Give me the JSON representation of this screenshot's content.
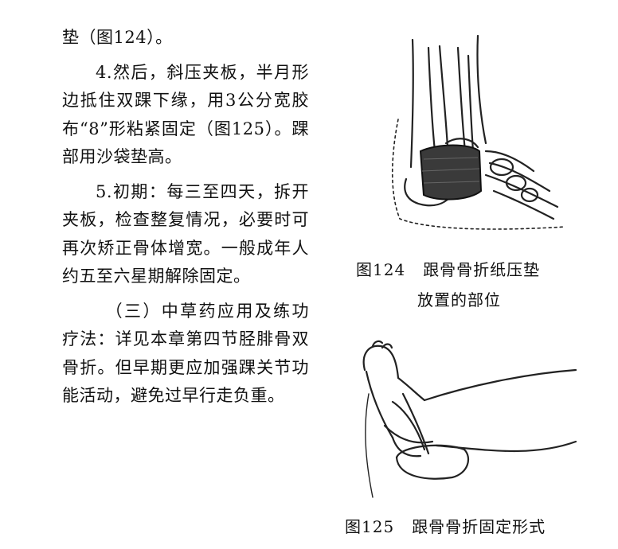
{
  "paragraphs": [
    "垫（图124）。",
    "4.然后，斜压夹板，半月形边抵住双踝下缘，用3公分宽胶布“8”形粘紧固定（图125）。踝部用沙袋垫高。",
    "5.初期：每三至四天，拆开夹板，检查整复情况，必要时可再次矫正骨体增宽。一般成年人约五至六星期解除固定。",
    "（三）中草药应用及练功疗法：详见本章第四节胫腓骨双骨折。但早期更应加强踝关节功能活动，避免过早行走负重。"
  ],
  "figure124": {
    "number": "图124",
    "caption_line1": "跟骨骨折纸压垫",
    "caption_line2": "放置的部位"
  },
  "figure125": {
    "number": "图125",
    "caption": "跟骨骨折固定形式"
  }
}
